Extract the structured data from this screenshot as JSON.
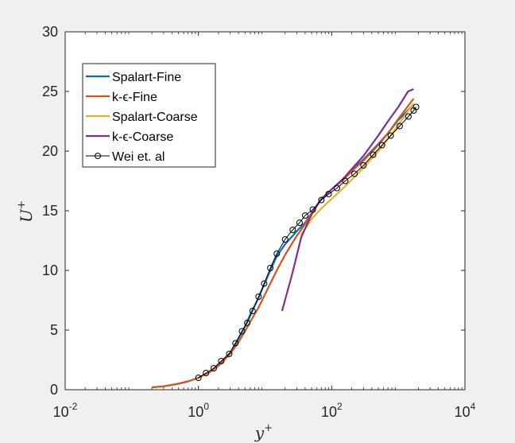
{
  "chart_data": {
    "type": "line",
    "xscale": "log",
    "xlim": [
      0.01,
      10000
    ],
    "ylim": [
      0,
      30
    ],
    "xlabel": "y",
    "xlabel_sup": "+",
    "ylabel": "U",
    "ylabel_sup": "+",
    "xticks": [
      {
        "base": "10",
        "exp": "-2"
      },
      {
        "base": "10",
        "exp": "0"
      },
      {
        "base": "10",
        "exp": "2"
      },
      {
        "base": "10",
        "exp": "4"
      }
    ],
    "yticks": [
      "0",
      "5",
      "10",
      "15",
      "20",
      "25",
      "30"
    ],
    "legend_position": "upper-left",
    "series": [
      {
        "name": "Spalart-Fine",
        "color": "#0072BD",
        "marker": "none",
        "points": [
          [
            0.2,
            0.2
          ],
          [
            0.3,
            0.28
          ],
          [
            0.5,
            0.5
          ],
          [
            0.7,
            0.7
          ],
          [
            1,
            1
          ],
          [
            1.5,
            1.5
          ],
          [
            2,
            2.1
          ],
          [
            3,
            3.1
          ],
          [
            4,
            4.3
          ],
          [
            5,
            5.3
          ],
          [
            6,
            6.3
          ],
          [
            8,
            7.7
          ],
          [
            10,
            9.0
          ],
          [
            12,
            10.0
          ],
          [
            15,
            11.2
          ],
          [
            20,
            12.2
          ],
          [
            25,
            12.8
          ],
          [
            30,
            13.3
          ],
          [
            40,
            14.0
          ],
          [
            50,
            14.8
          ],
          [
            70,
            16.0
          ],
          [
            100,
            16.8
          ],
          [
            150,
            17.7
          ],
          [
            200,
            18.4
          ],
          [
            300,
            19.3
          ],
          [
            500,
            20.6
          ],
          [
            700,
            21.5
          ],
          [
            1000,
            22.6
          ],
          [
            1500,
            23.6
          ],
          [
            1700,
            23.9
          ]
        ]
      },
      {
        "name": "k-ϵ-Fine",
        "color": "#D95319",
        "marker": "none",
        "points": [
          [
            0.2,
            0.2
          ],
          [
            0.3,
            0.28
          ],
          [
            0.5,
            0.5
          ],
          [
            0.7,
            0.7
          ],
          [
            1,
            1
          ],
          [
            1.5,
            1.5
          ],
          [
            2,
            2.0
          ],
          [
            3,
            3.0
          ],
          [
            4,
            4.0
          ],
          [
            5,
            4.9
          ],
          [
            6,
            5.7
          ],
          [
            8,
            6.9
          ],
          [
            10,
            8.0
          ],
          [
            12,
            8.9
          ],
          [
            15,
            10.0
          ],
          [
            20,
            11.3
          ],
          [
            25,
            12.2
          ],
          [
            30,
            12.9
          ],
          [
            40,
            13.9
          ],
          [
            50,
            14.8
          ],
          [
            70,
            16.0
          ],
          [
            100,
            16.8
          ],
          [
            150,
            17.6
          ],
          [
            200,
            18.3
          ],
          [
            300,
            19.2
          ],
          [
            500,
            20.5
          ],
          [
            700,
            21.5
          ],
          [
            1000,
            22.7
          ],
          [
            1500,
            24.0
          ],
          [
            1700,
            24.4
          ]
        ]
      },
      {
        "name": "Spalart-Coarse",
        "color": "#EDB120",
        "marker": "none",
        "points": [
          [
            35,
            13.0
          ],
          [
            50,
            14.3
          ],
          [
            70,
            15.2
          ],
          [
            100,
            16.0
          ],
          [
            150,
            16.9
          ],
          [
            200,
            17.6
          ],
          [
            300,
            18.6
          ],
          [
            500,
            20.0
          ],
          [
            700,
            21.0
          ],
          [
            1000,
            22.2
          ],
          [
            1500,
            23.6
          ],
          [
            1700,
            24.0
          ]
        ]
      },
      {
        "name": "k-ϵ-Coarse",
        "color": "#7E2F8E",
        "marker": "none",
        "points": [
          [
            18,
            6.6
          ],
          [
            25,
            9.5
          ],
          [
            35,
            12.8
          ],
          [
            50,
            14.7
          ],
          [
            70,
            16.0
          ],
          [
            100,
            16.8
          ],
          [
            150,
            17.7
          ],
          [
            200,
            18.5
          ],
          [
            300,
            19.6
          ],
          [
            500,
            21.3
          ],
          [
            700,
            22.5
          ],
          [
            1000,
            23.7
          ],
          [
            1400,
            25.0
          ],
          [
            1700,
            25.2
          ]
        ]
      },
      {
        "name": "Wei et. al",
        "color": "#000000",
        "marker": "circle",
        "points": [
          [
            1,
            1.0
          ],
          [
            1.3,
            1.4
          ],
          [
            1.7,
            1.8
          ],
          [
            2.2,
            2.4
          ],
          [
            2.9,
            3.0
          ],
          [
            3.6,
            3.9
          ],
          [
            4.5,
            4.9
          ],
          [
            5.4,
            5.6
          ],
          [
            6.5,
            6.6
          ],
          [
            8,
            7.8
          ],
          [
            9.7,
            8.9
          ],
          [
            12,
            10.2
          ],
          [
            15,
            11.4
          ],
          [
            20,
            12.6
          ],
          [
            26,
            13.4
          ],
          [
            33,
            14.0
          ],
          [
            40,
            14.6
          ],
          [
            52,
            15.1
          ],
          [
            70,
            15.9
          ],
          [
            90,
            16.4
          ],
          [
            120,
            16.9
          ],
          [
            160,
            17.5
          ],
          [
            220,
            18.1
          ],
          [
            300,
            18.8
          ],
          [
            420,
            19.7
          ],
          [
            570,
            20.5
          ],
          [
            770,
            21.3
          ],
          [
            1050,
            22.1
          ],
          [
            1420,
            22.9
          ],
          [
            1700,
            23.4
          ],
          [
            1850,
            23.7
          ]
        ]
      }
    ]
  }
}
